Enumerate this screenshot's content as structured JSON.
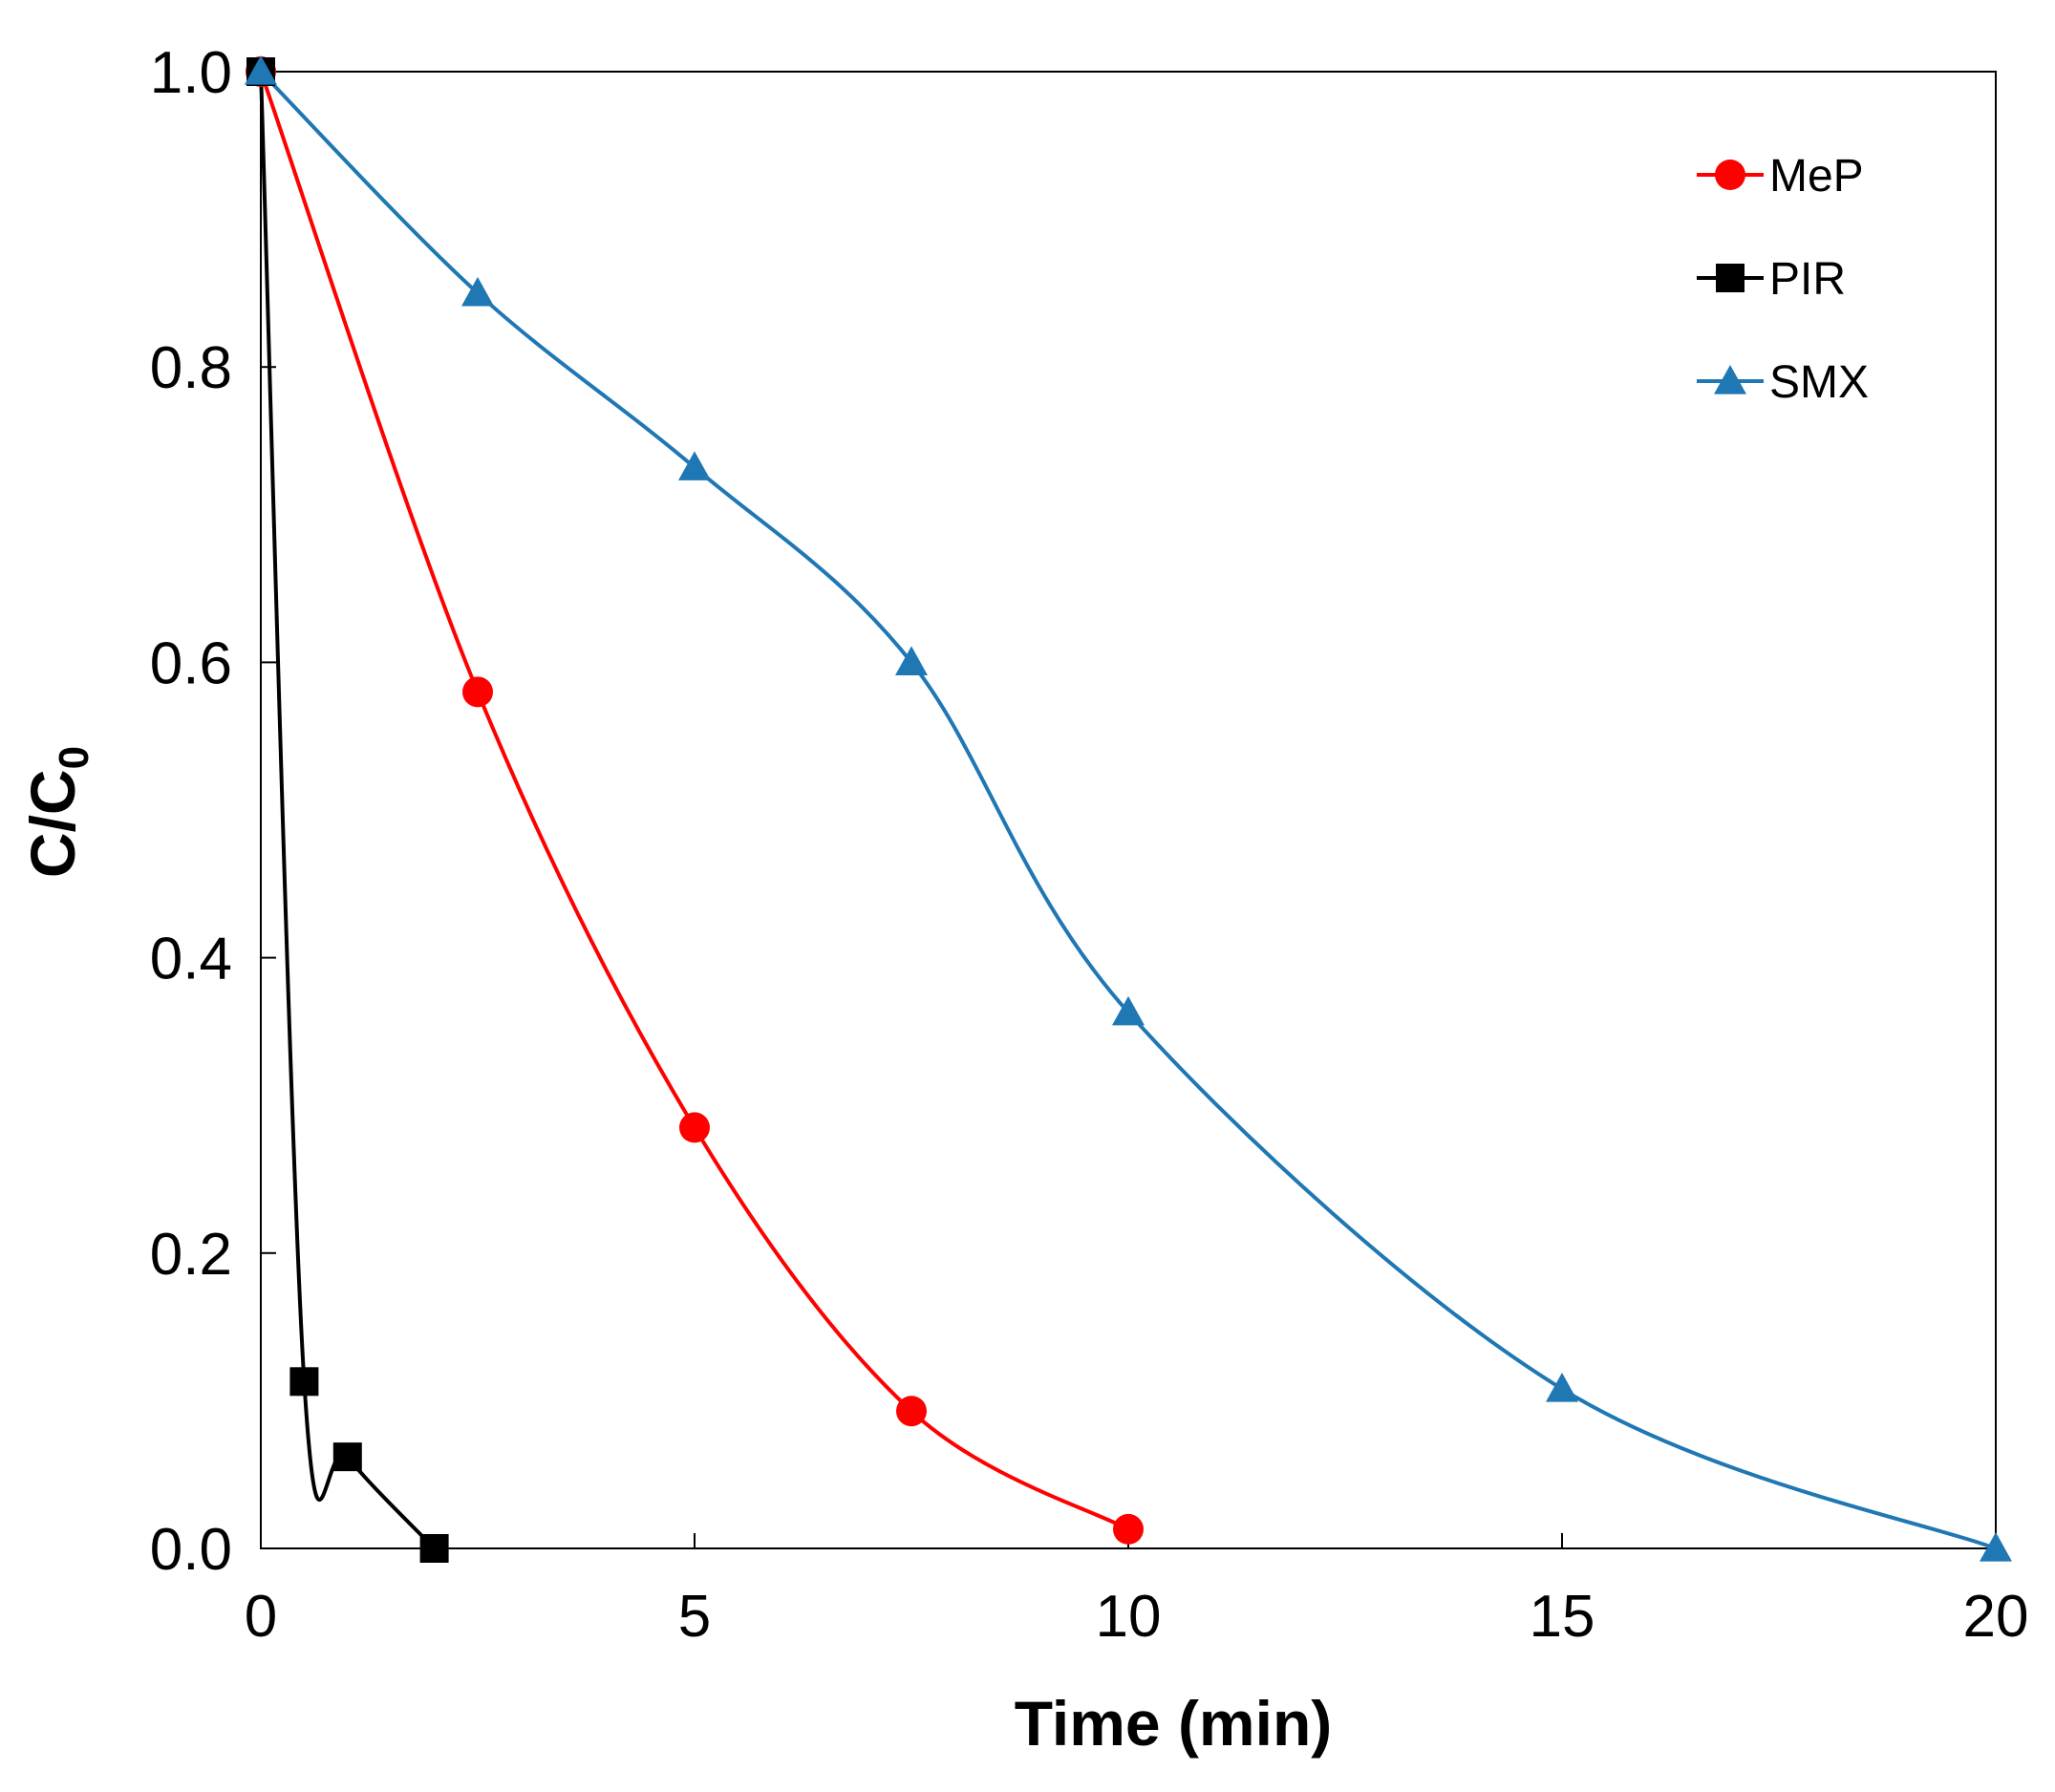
{
  "chart_data": {
    "type": "line",
    "title": "",
    "xlabel": "Time (min)",
    "ylabel": "C/C",
    "ylabel_subscript": "0",
    "xlim": [
      0,
      20
    ],
    "ylim": [
      0,
      1.0
    ],
    "xticks": [
      0,
      5,
      10,
      15,
      20
    ],
    "xtick_labels": [
      "0",
      "5",
      "10",
      "15",
      "20"
    ],
    "yticks": [
      0,
      0.2,
      0.4,
      0.6,
      0.8,
      1.0
    ],
    "ytick_labels": [
      "0.0",
      "0.2",
      "0.4",
      "0.6",
      "0.8",
      "1.0"
    ],
    "grid": false,
    "legend_position": "top-right",
    "series": [
      {
        "name": "MeP",
        "color": "#ff0000",
        "marker": "circle",
        "x": [
          0,
          2.5,
          5,
          7.5,
          10
        ],
        "y": [
          1.0,
          0.58,
          0.285,
          0.093,
          0.013
        ]
      },
      {
        "name": "PIR",
        "color": "#000000",
        "marker": "square",
        "x": [
          0,
          0.5,
          1,
          2
        ],
        "y": [
          1.0,
          0.113,
          0.062,
          0.0
        ]
      },
      {
        "name": "SMX",
        "color": "#1f77b4",
        "marker": "triangle",
        "x": [
          0,
          2.5,
          5,
          7.5,
          10,
          15,
          20
        ],
        "y": [
          1.0,
          0.85,
          0.732,
          0.6,
          0.363,
          0.108,
          0.0
        ]
      }
    ]
  }
}
